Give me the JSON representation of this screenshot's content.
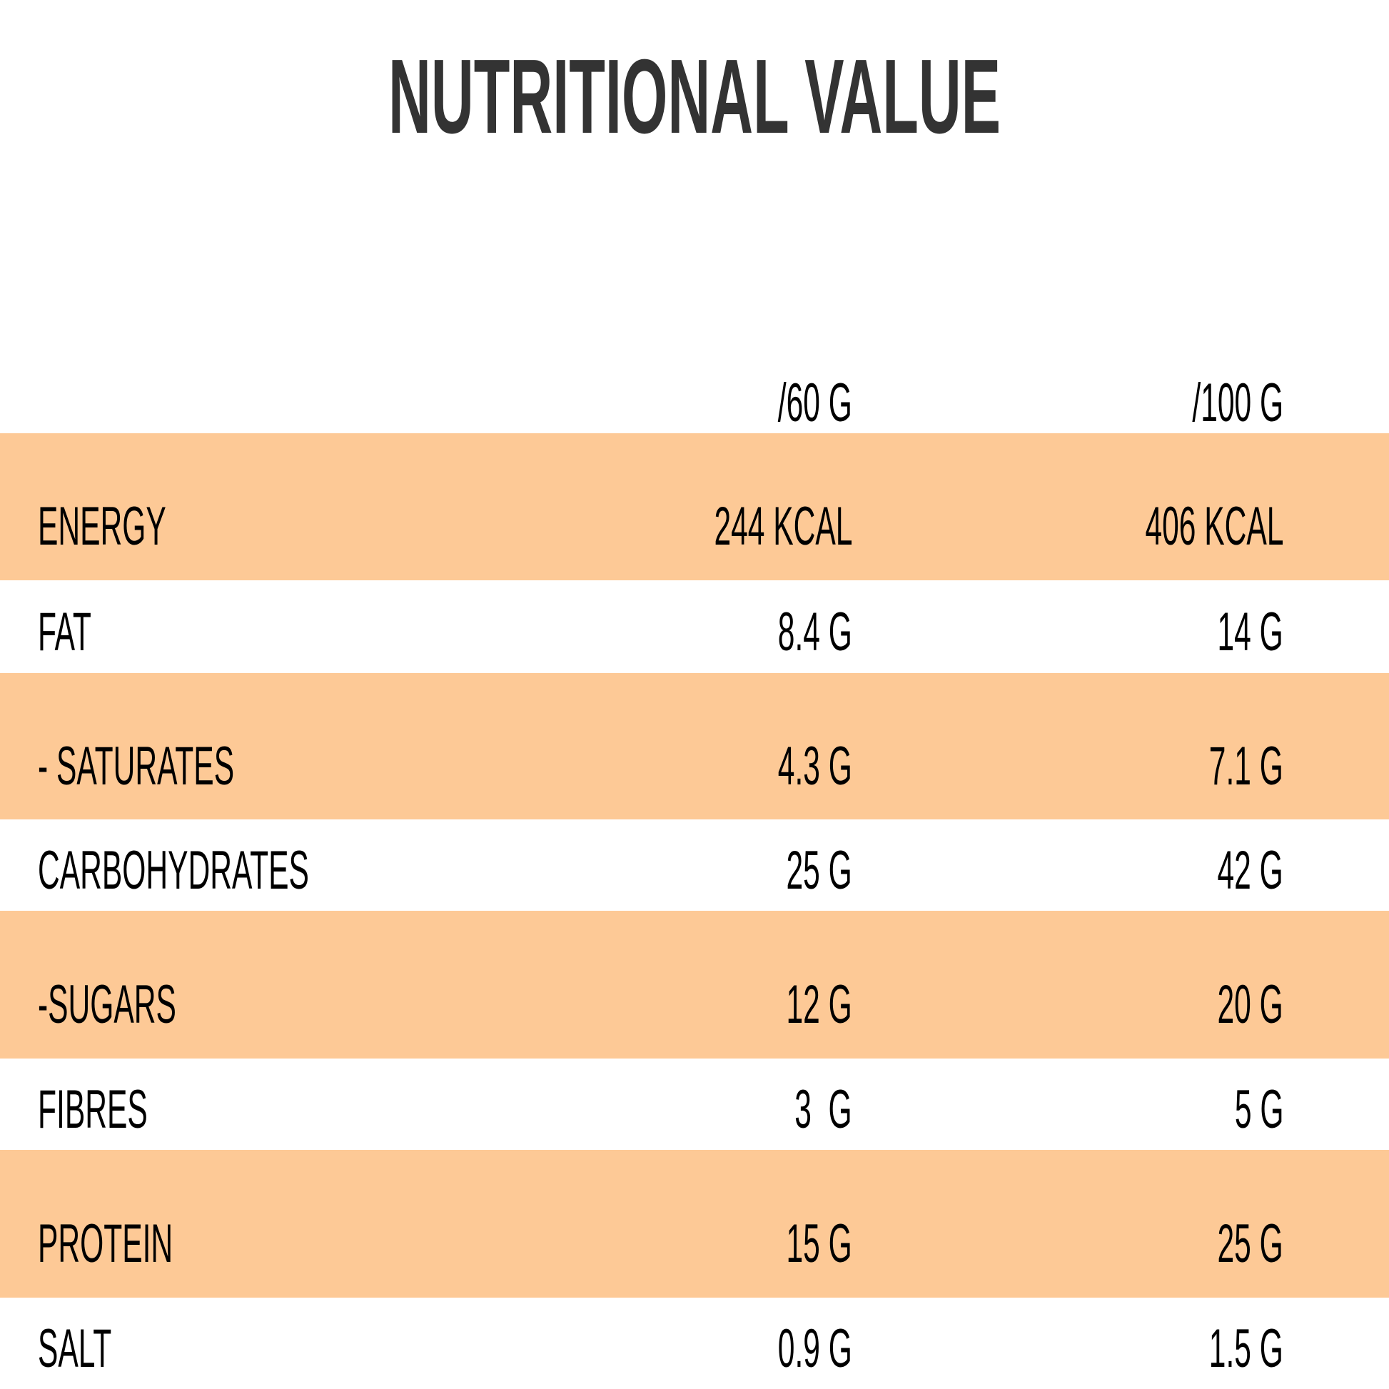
{
  "title": "NUTRITIONAL VALUE",
  "columns": [
    "/60 G",
    "/100 G"
  ],
  "colors": {
    "band": "#FDC996",
    "title": "#333333",
    "text": "#000000"
  },
  "rows": [
    {
      "label": "ENERGY",
      "per60": "244 KCAL",
      "per100": "406 KCAL"
    },
    {
      "label": "FAT",
      "per60": "8.4 G",
      "per100": "14 G"
    },
    {
      "label": "- SATURATES",
      "per60": "4.3 G",
      "per100": "7.1 G"
    },
    {
      "label": "CARBOHYDRATES",
      "per60": "25 G",
      "per100": "42 G"
    },
    {
      "label": "-SUGARS",
      "per60": "12 G",
      "per100": "20 G"
    },
    {
      "label": "FIBRES",
      "per60": "3  G",
      "per100": "5 G"
    },
    {
      "label": "PROTEIN",
      "per60": "15 G",
      "per100": "25 G"
    },
    {
      "label": "SALT",
      "per60": "0.9 G",
      "per100": "1.5 G"
    }
  ]
}
